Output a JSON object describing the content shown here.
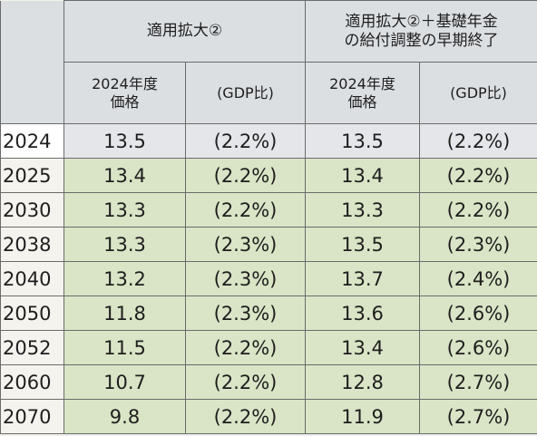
{
  "header": {
    "group1": "適用拡大②",
    "group2_line1": "適用拡大②＋基礎年金",
    "group2_line2": "の給付調整の早期終了",
    "sub_price_line1": "2024年度",
    "sub_price_line2": "価格",
    "sub_gdp": "(GDP比)"
  },
  "rows": [
    {
      "year": "2024",
      "a_price": "13.5",
      "a_gdp": "(2.2%)",
      "b_price": "13.5",
      "b_gdp": "(2.2%)"
    },
    {
      "year": "2025",
      "a_price": "13.4",
      "a_gdp": "(2.2%)",
      "b_price": "13.4",
      "b_gdp": "(2.2%)"
    },
    {
      "year": "2030",
      "a_price": "13.3",
      "a_gdp": "(2.2%)",
      "b_price": "13.3",
      "b_gdp": "(2.2%)"
    },
    {
      "year": "2038",
      "a_price": "13.3",
      "a_gdp": "(2.3%)",
      "b_price": "13.5",
      "b_gdp": "(2.3%)"
    },
    {
      "year": "2040",
      "a_price": "13.2",
      "a_gdp": "(2.3%)",
      "b_price": "13.7",
      "b_gdp": "(2.4%)"
    },
    {
      "year": "2050",
      "a_price": "11.8",
      "a_gdp": "(2.3%)",
      "b_price": "13.6",
      "b_gdp": "(2.6%)"
    },
    {
      "year": "2052",
      "a_price": "11.5",
      "a_gdp": "(2.2%)",
      "b_price": "13.4",
      "b_gdp": "(2.6%)"
    },
    {
      "year": "2060",
      "a_price": "10.7",
      "a_gdp": "(2.2%)",
      "b_price": "12.8",
      "b_gdp": "(2.7%)"
    },
    {
      "year": "2070",
      "a_price": "9.8",
      "a_gdp": "(2.2%)",
      "b_price": "11.9",
      "b_gdp": "(2.7%)"
    }
  ],
  "colors": {
    "header_bg": "#dcdfe2",
    "highlight_row_bg": "#d9e5c6",
    "first_row_bg": "#e4e6e9"
  }
}
